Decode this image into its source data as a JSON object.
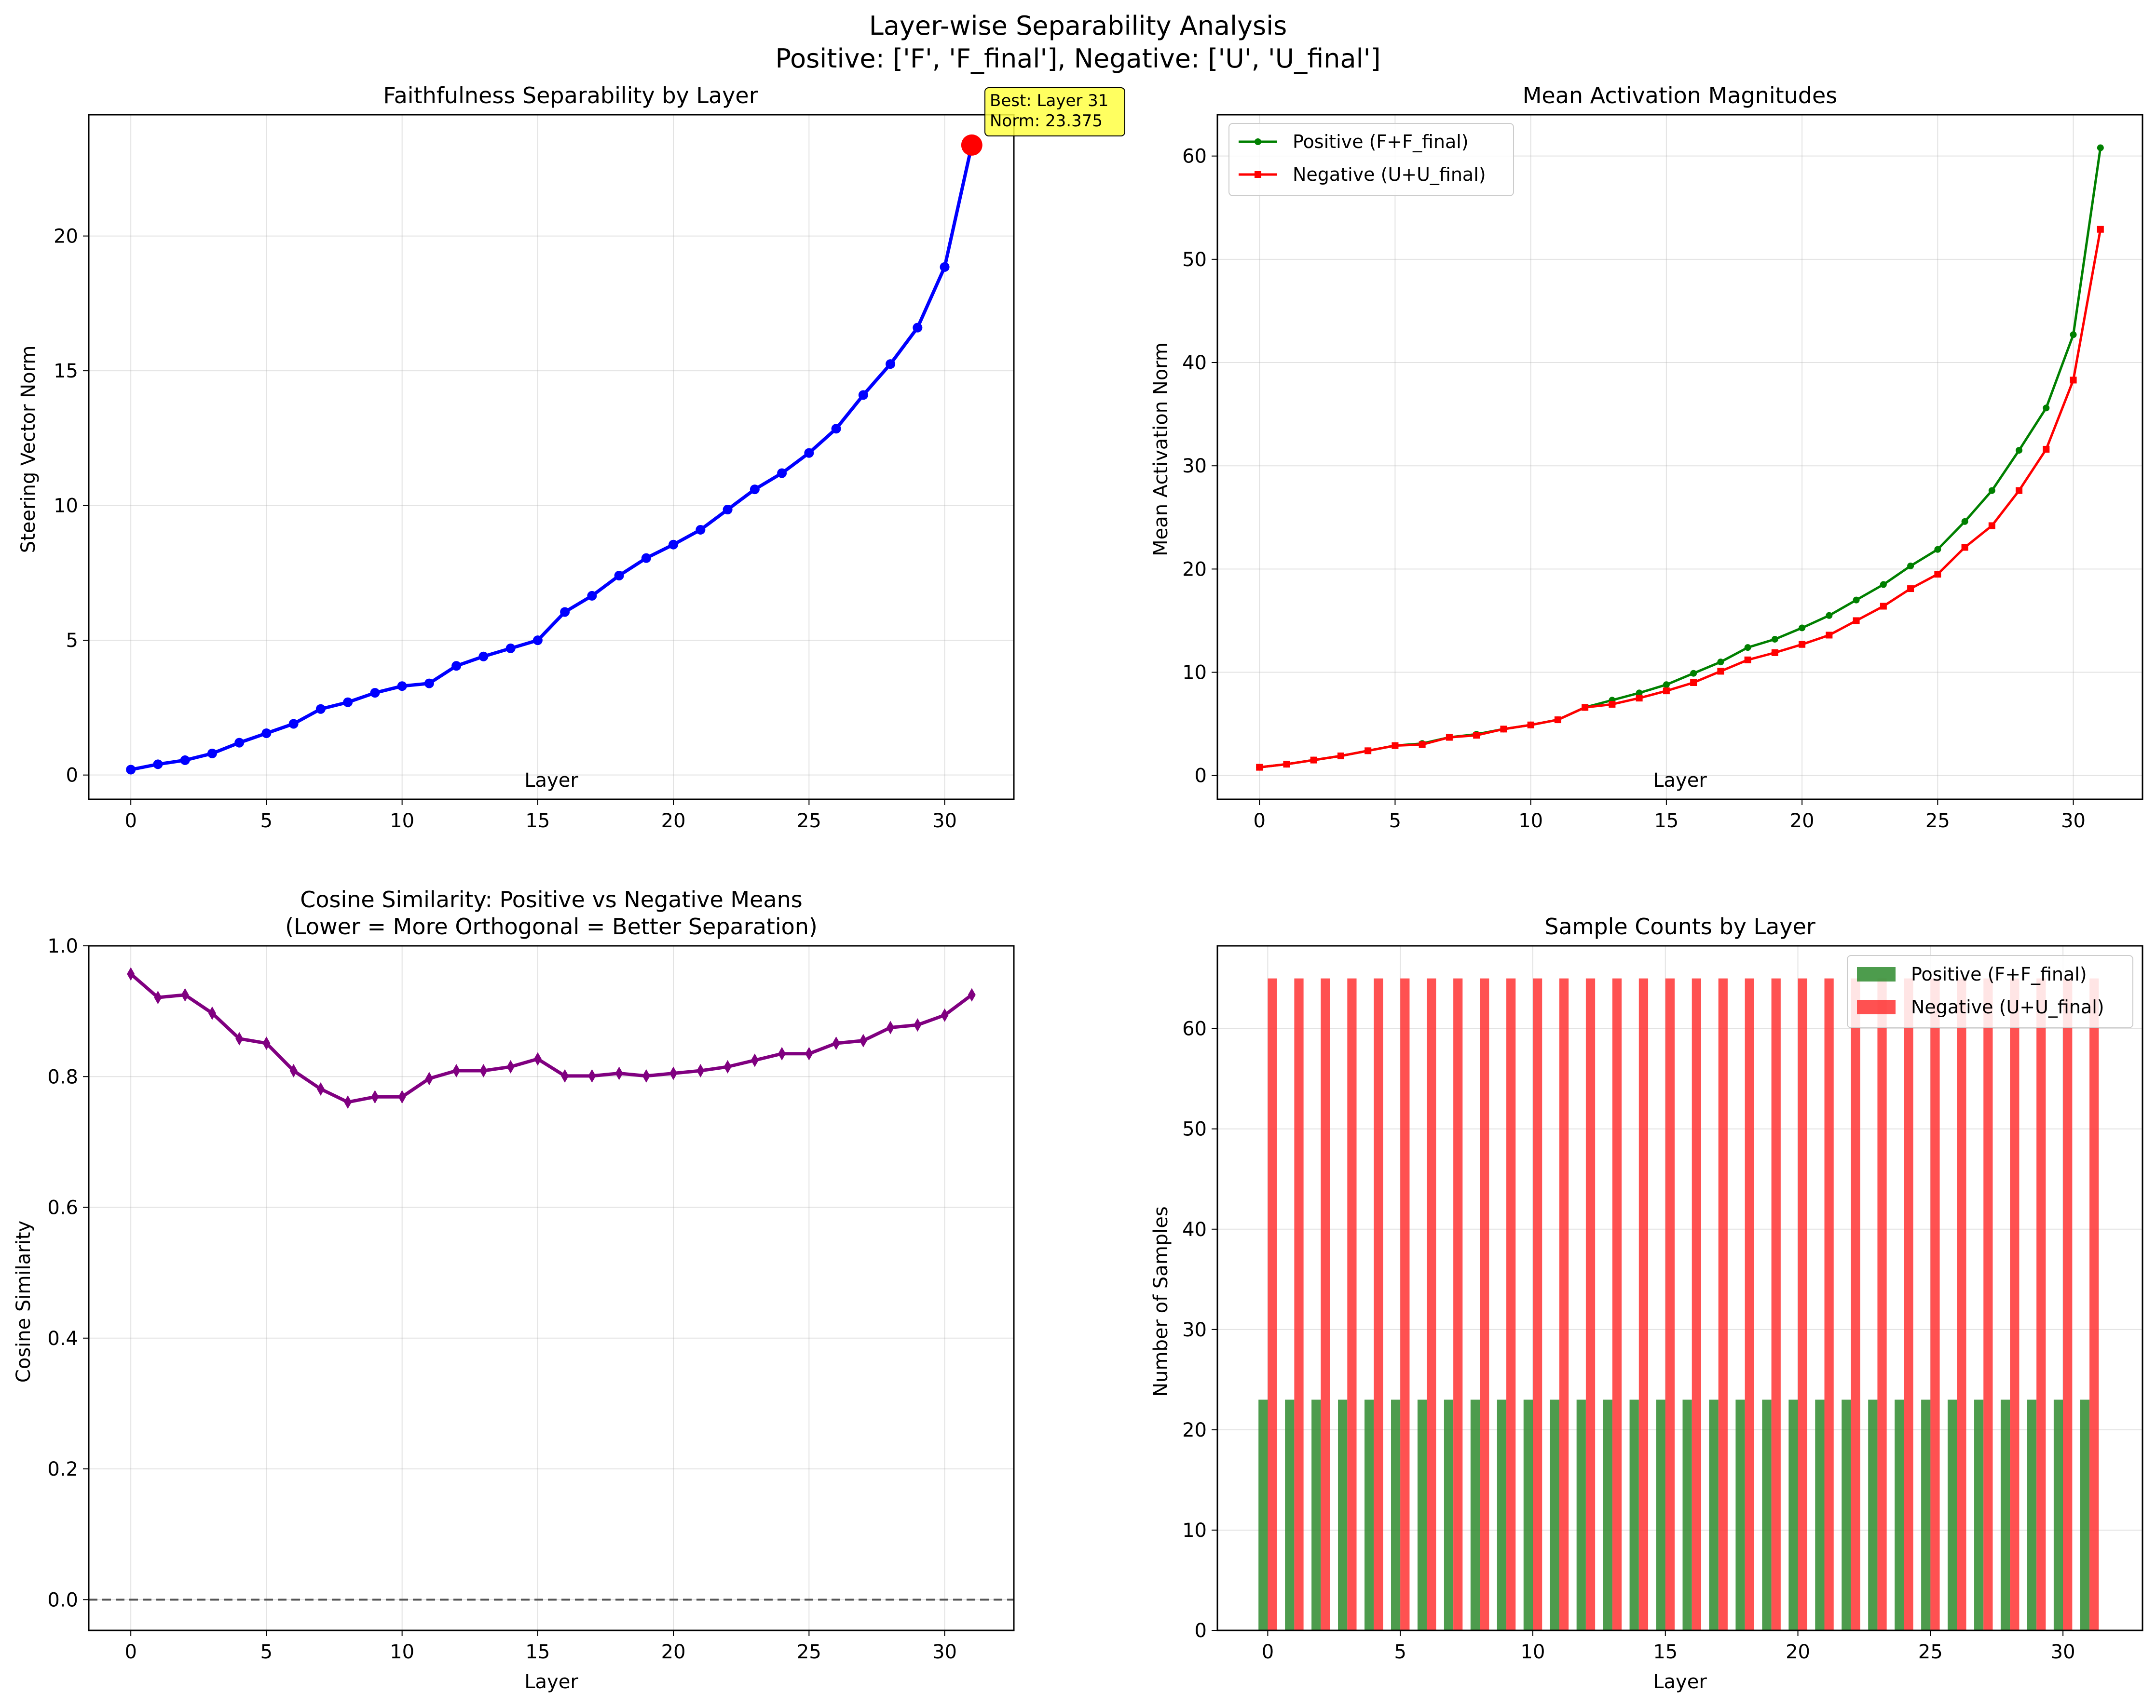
{
  "figure": {
    "title_line1": "Layer-wise Separability Analysis",
    "title_line2": "Positive: ['F', 'F_final'], Negative: ['U', 'U_final']"
  },
  "chart_data": [
    {
      "id": "separability",
      "type": "line",
      "title": "Faithfulness Separability by Layer",
      "xlabel": "Layer",
      "ylabel": "Steering Vector Norm",
      "xlim": [
        -1.55,
        32.55
      ],
      "ylim": [
        -0.9,
        24.5
      ],
      "xticks": [
        0,
        5,
        10,
        15,
        20,
        25,
        30
      ],
      "yticks": [
        0,
        5,
        10,
        15,
        20
      ],
      "grid": true,
      "x": [
        0,
        1,
        2,
        3,
        4,
        5,
        6,
        7,
        8,
        9,
        10,
        11,
        12,
        13,
        14,
        15,
        16,
        17,
        18,
        19,
        20,
        21,
        22,
        23,
        24,
        25,
        26,
        27,
        28,
        29,
        30,
        31
      ],
      "series": [
        {
          "values": [
            0.2,
            0.4,
            0.55,
            0.8,
            1.2,
            1.55,
            1.9,
            2.45,
            2.7,
            3.05,
            3.3,
            3.4,
            4.05,
            4.4,
            4.7,
            5.0,
            6.05,
            6.65,
            7.4,
            8.05,
            8.55,
            9.1,
            9.85,
            10.6,
            11.2,
            11.95,
            12.85,
            14.1,
            15.25,
            16.6,
            18.85,
            23.375
          ],
          "color": "#0000ff",
          "marker": "circle"
        }
      ],
      "highlight": {
        "x": 31,
        "y": 23.375,
        "color": "#ff0000"
      },
      "annotation": {
        "line1": "Best: Layer 31",
        "line2": "Norm: 23.375",
        "bg": "#ffff44"
      }
    },
    {
      "id": "magnitudes",
      "type": "line",
      "title": "Mean Activation Magnitudes",
      "xlabel": "Layer",
      "ylabel": "Mean Activation Norm",
      "xlim": [
        -1.55,
        32.55
      ],
      "ylim": [
        -2.3,
        64.0
      ],
      "xticks": [
        0,
        5,
        10,
        15,
        20,
        25,
        30
      ],
      "yticks": [
        0,
        10,
        20,
        30,
        40,
        50,
        60
      ],
      "grid": true,
      "legend_position": "upper-left",
      "x": [
        0,
        1,
        2,
        3,
        4,
        5,
        6,
        7,
        8,
        9,
        10,
        11,
        12,
        13,
        14,
        15,
        16,
        17,
        18,
        19,
        20,
        21,
        22,
        23,
        24,
        25,
        26,
        27,
        28,
        29,
        30,
        31
      ],
      "series": [
        {
          "name": "Positive (F+F_final)",
          "color": "#008000",
          "marker": "circle",
          "values": [
            0.8,
            1.1,
            1.5,
            1.9,
            2.4,
            2.9,
            3.1,
            3.7,
            4.0,
            4.5,
            4.9,
            5.4,
            6.6,
            7.3,
            8.0,
            8.8,
            9.9,
            11.0,
            12.4,
            13.2,
            14.3,
            15.5,
            17.0,
            18.5,
            20.3,
            21.9,
            24.6,
            27.6,
            31.5,
            35.6,
            42.7,
            60.8
          ]
        },
        {
          "name": "Negative (U+U_final)",
          "color": "#ff0000",
          "marker": "square",
          "values": [
            0.8,
            1.1,
            1.5,
            1.9,
            2.4,
            2.9,
            3.0,
            3.7,
            3.9,
            4.5,
            4.9,
            5.4,
            6.6,
            6.9,
            7.5,
            8.2,
            9.0,
            10.1,
            11.2,
            11.9,
            12.7,
            13.6,
            15.0,
            16.4,
            18.1,
            19.5,
            22.1,
            24.2,
            27.6,
            31.6,
            38.3,
            52.9
          ]
        }
      ]
    },
    {
      "id": "cosine",
      "type": "line",
      "title_line1": "Cosine Similarity: Positive vs Negative Means",
      "title_line2": "(Lower = More Orthogonal = Better Separation)",
      "xlabel": "Layer",
      "ylabel": "Cosine Similarity",
      "xlim": [
        -1.55,
        32.55
      ],
      "ylim": [
        -0.047,
        1.0
      ],
      "xticks": [
        0,
        5,
        10,
        15,
        20,
        25,
        30
      ],
      "yticks": [
        0.0,
        0.2,
        0.4,
        0.6,
        0.8,
        1.0
      ],
      "ytick_labels": [
        "0.0",
        "0.2",
        "0.4",
        "0.6",
        "0.8",
        "1.0"
      ],
      "grid": true,
      "x": [
        0,
        1,
        2,
        3,
        4,
        5,
        6,
        7,
        8,
        9,
        10,
        11,
        12,
        13,
        14,
        15,
        16,
        17,
        18,
        19,
        20,
        21,
        22,
        23,
        24,
        25,
        26,
        27,
        28,
        29,
        30,
        31
      ],
      "series": [
        {
          "color": "#800080",
          "marker": "diamond",
          "values": [
            0.957,
            0.921,
            0.925,
            0.897,
            0.858,
            0.851,
            0.809,
            0.781,
            0.761,
            0.769,
            0.769,
            0.797,
            0.809,
            0.809,
            0.815,
            0.827,
            0.801,
            0.801,
            0.805,
            0.801,
            0.805,
            0.809,
            0.815,
            0.825,
            0.835,
            0.835,
            0.851,
            0.855,
            0.875,
            0.879,
            0.894,
            0.925
          ]
        }
      ],
      "reference_line": {
        "y": 0.0,
        "color": "#555555",
        "style": "dashed"
      }
    },
    {
      "id": "samples",
      "type": "bar",
      "title": "Sample Counts by Layer",
      "xlabel": "Layer",
      "ylabel": "Number of Samples",
      "xlim": [
        -1.9,
        33.0
      ],
      "ylim": [
        0,
        68.25
      ],
      "xticks": [
        0,
        5,
        10,
        15,
        20,
        25,
        30
      ],
      "yticks": [
        0,
        10,
        20,
        30,
        40,
        50,
        60
      ],
      "grid": true,
      "legend_position": "upper-right",
      "bar_width": 0.35,
      "categories": [
        0,
        1,
        2,
        3,
        4,
        5,
        6,
        7,
        8,
        9,
        10,
        11,
        12,
        13,
        14,
        15,
        16,
        17,
        18,
        19,
        20,
        21,
        22,
        23,
        24,
        25,
        26,
        27,
        28,
        29,
        30,
        31
      ],
      "series": [
        {
          "name": "Positive (F+F_final)",
          "color": "#2e8b2e",
          "offset": -0.175,
          "values": [
            23,
            23,
            23,
            23,
            23,
            23,
            23,
            23,
            23,
            23,
            23,
            23,
            23,
            23,
            23,
            23,
            23,
            23,
            23,
            23,
            23,
            23,
            23,
            23,
            23,
            23,
            23,
            23,
            23,
            23,
            23,
            23
          ]
        },
        {
          "name": "Negative (U+U_final)",
          "color": "#ff3333",
          "offset": 0.175,
          "values": [
            65,
            65,
            65,
            65,
            65,
            65,
            65,
            65,
            65,
            65,
            65,
            65,
            65,
            65,
            65,
            65,
            65,
            65,
            65,
            65,
            65,
            65,
            65,
            65,
            65,
            65,
            65,
            65,
            65,
            65,
            65,
            65
          ]
        }
      ]
    }
  ]
}
